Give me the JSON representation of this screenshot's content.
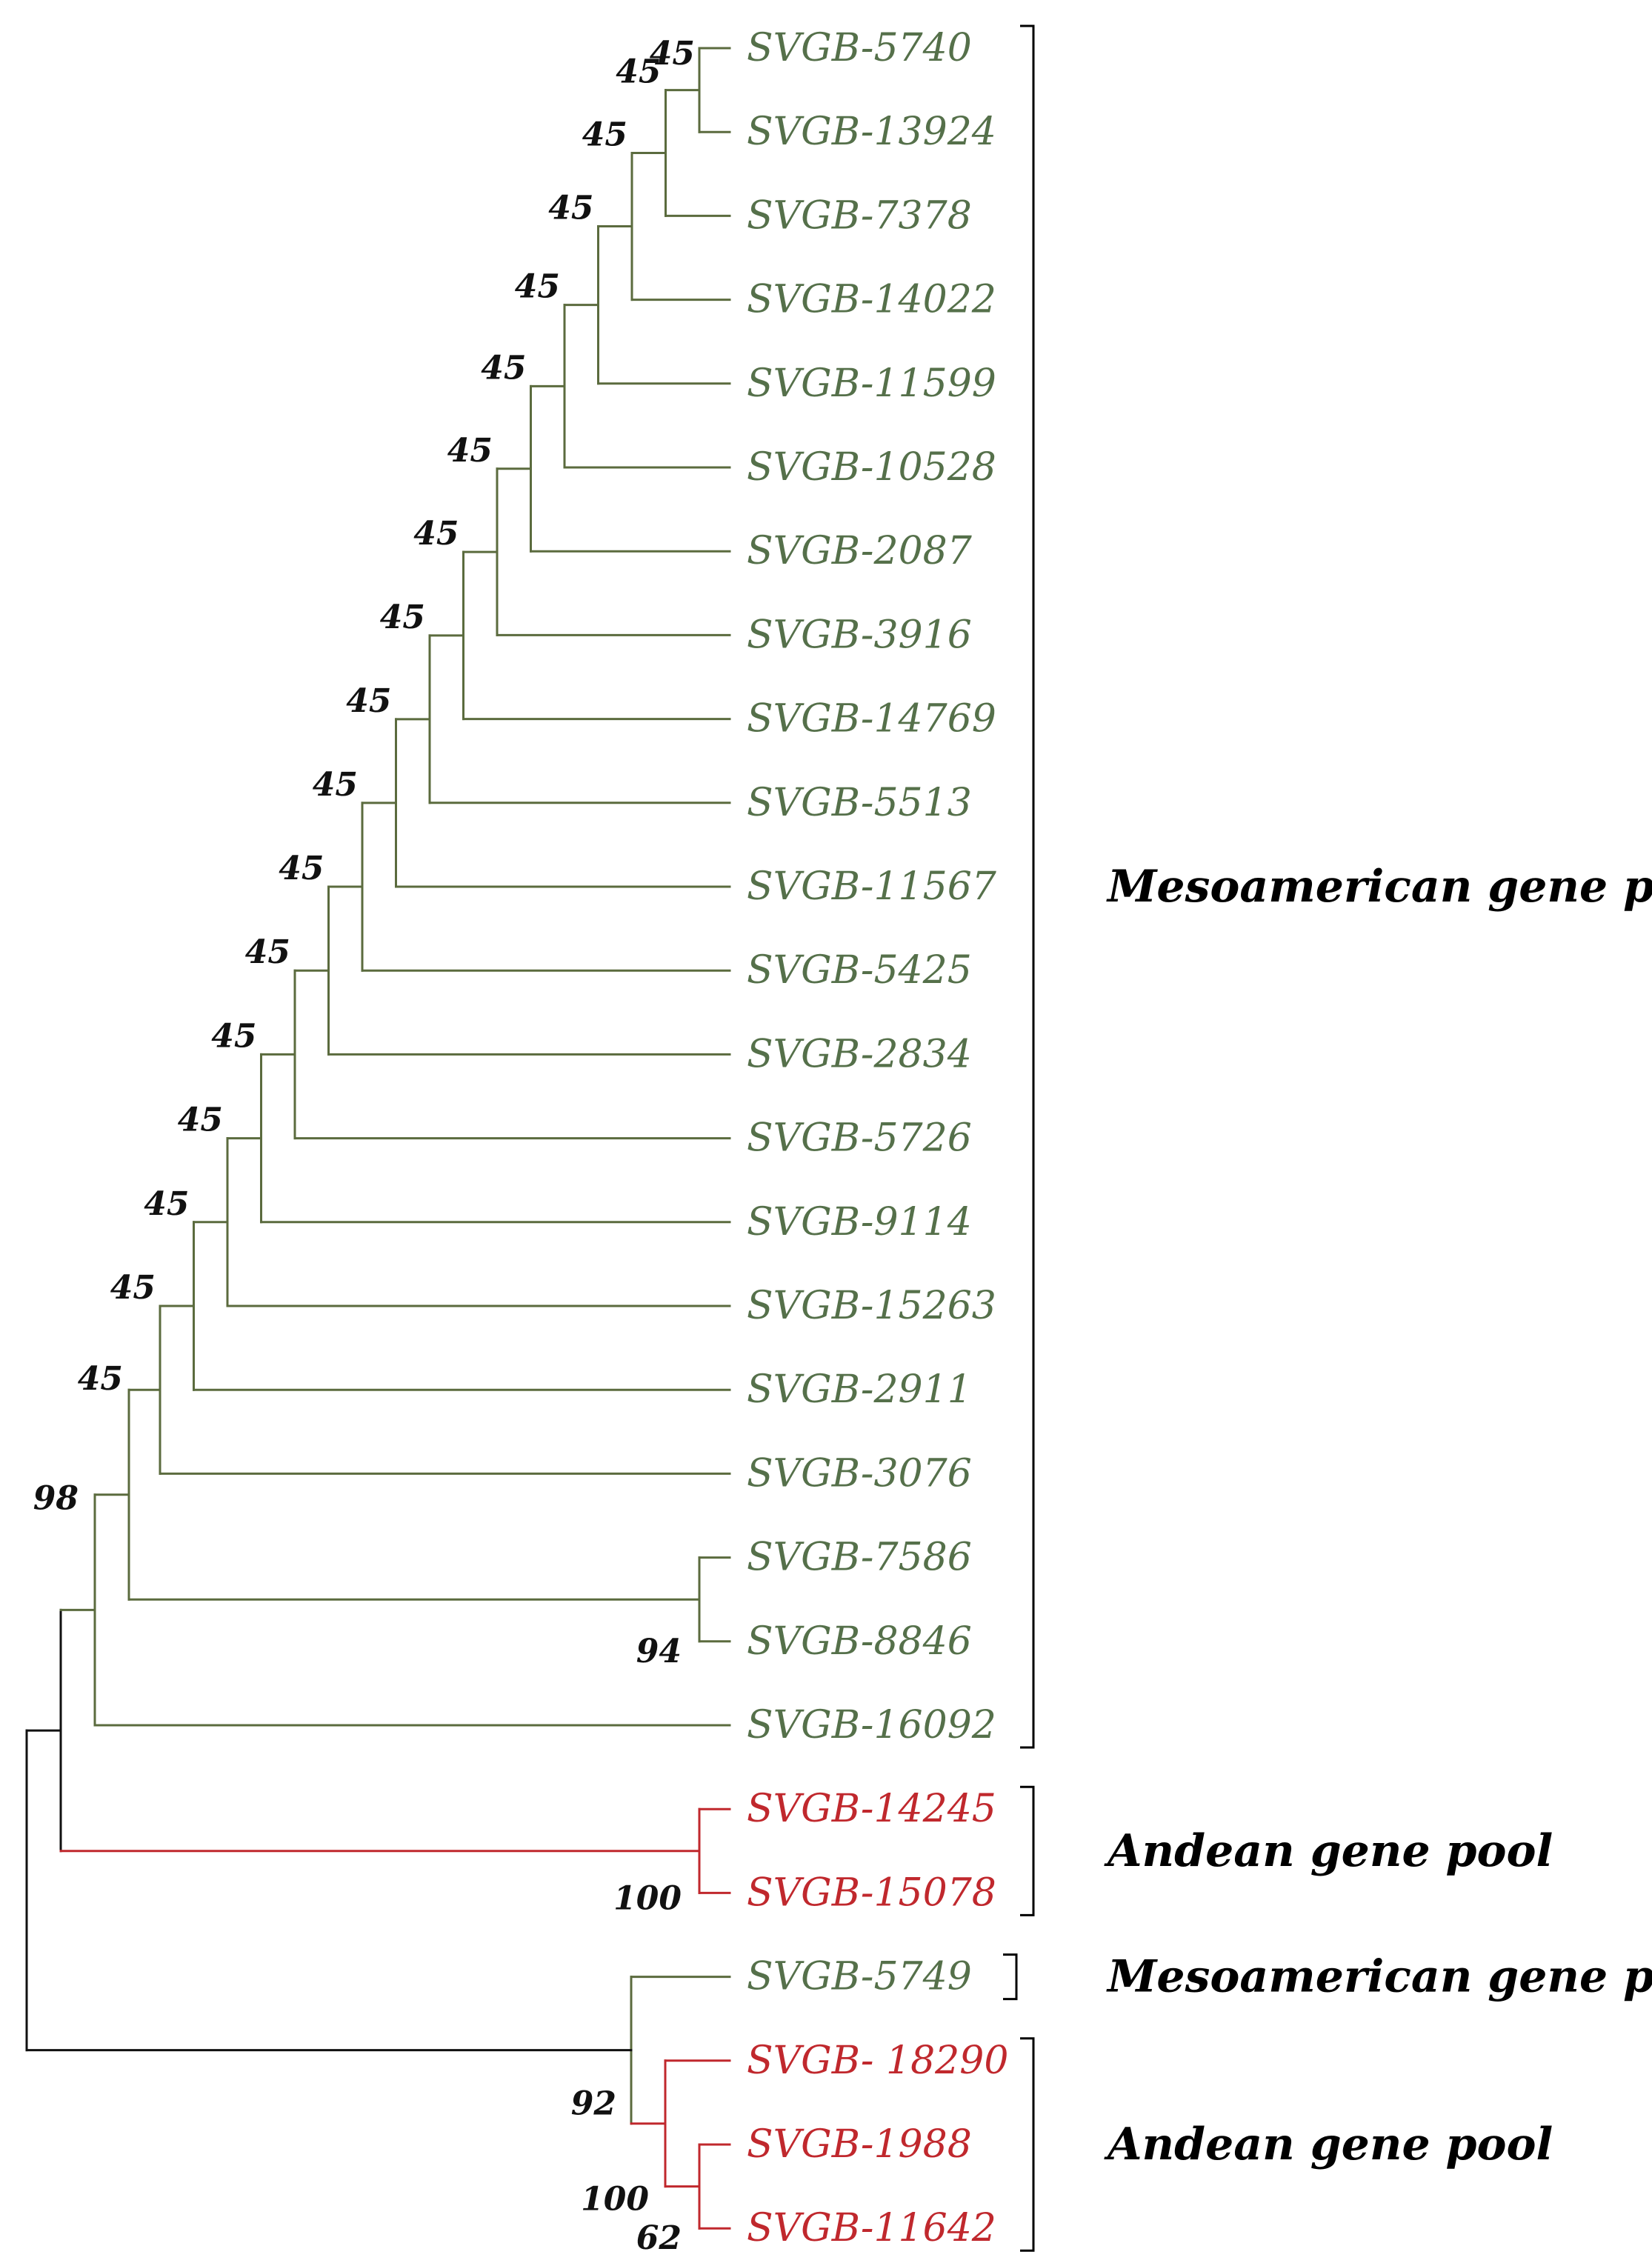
{
  "colors": {
    "mesoamerican": "#5b6b3e",
    "andean": "#c0282d",
    "root": "#111111",
    "leaf_meso_text": "#55704a",
    "leaf_andean_text": "#c0282d"
  },
  "tree": {
    "leaves": [
      {
        "label": "SVGB-5740",
        "pool": "meso"
      },
      {
        "label": "SVGB-13924",
        "pool": "meso"
      },
      {
        "label": "SVGB-7378",
        "pool": "meso"
      },
      {
        "label": "SVGB-14022",
        "pool": "meso"
      },
      {
        "label": "SVGB-11599",
        "pool": "meso"
      },
      {
        "label": "SVGB-10528",
        "pool": "meso"
      },
      {
        "label": "SVGB-2087",
        "pool": "meso"
      },
      {
        "label": "SVGB-3916",
        "pool": "meso"
      },
      {
        "label": "SVGB-14769",
        "pool": "meso"
      },
      {
        "label": "SVGB-5513",
        "pool": "meso"
      },
      {
        "label": "SVGB-11567",
        "pool": "meso"
      },
      {
        "label": "SVGB-5425",
        "pool": "meso"
      },
      {
        "label": "SVGB-2834",
        "pool": "meso"
      },
      {
        "label": "SVGB-5726",
        "pool": "meso"
      },
      {
        "label": "SVGB-9114",
        "pool": "meso"
      },
      {
        "label": "SVGB-15263",
        "pool": "meso"
      },
      {
        "label": "SVGB-2911",
        "pool": "meso"
      },
      {
        "label": "SVGB-3076",
        "pool": "meso"
      },
      {
        "label": "SVGB-7586",
        "pool": "meso"
      },
      {
        "label": "SVGB-8846",
        "pool": "meso"
      },
      {
        "label": "SVGB-16092",
        "pool": "meso"
      },
      {
        "label": "SVGB-14245",
        "pool": "andean"
      },
      {
        "label": "SVGB-15078",
        "pool": "andean"
      },
      {
        "label": "SVGB-5749",
        "pool": "meso"
      },
      {
        "label": "SVGB- 18290",
        "pool": "andean"
      },
      {
        "label": "SVGB-1988",
        "pool": "andean"
      },
      {
        "label": "SVGB-11642",
        "pool": "andean"
      }
    ],
    "bootstrap": {
      "ladder": [
        "45",
        "45",
        "45",
        "45",
        "45",
        "45",
        "45",
        "45",
        "45",
        "45",
        "45",
        "45",
        "45",
        "45",
        "45",
        "45",
        "45"
      ],
      "meso_root": "98",
      "pair_7586_8846": "94",
      "andean_pair": "100",
      "lower_clade": "92",
      "andean_triplet": "100",
      "pair_1988_11642": "62"
    },
    "groups": [
      {
        "label": "Mesoamerican gene pool",
        "first_leaf": 0,
        "last_leaf": 20
      },
      {
        "label": "Andean gene pool",
        "first_leaf": 21,
        "last_leaf": 22
      },
      {
        "label": "Mesoamerican gene pool",
        "first_leaf": 23,
        "last_leaf": 23
      },
      {
        "label": "Andean gene pool",
        "first_leaf": 24,
        "last_leaf": 26
      }
    ]
  }
}
